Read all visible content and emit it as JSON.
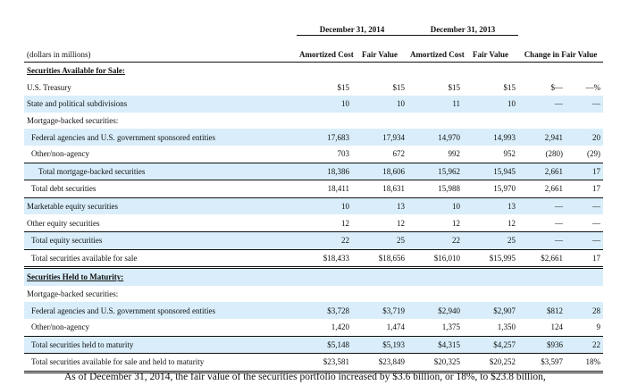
{
  "table": {
    "group_headers": [
      "December 31, 2014",
      "December 31, 2013"
    ],
    "units_label": "(dollars in millions)",
    "col_headers": [
      "Amortized Cost",
      "Fair Value",
      "Amortized Cost",
      "Fair Value",
      "Change in Fair Value"
    ],
    "rows": [
      {
        "label": "Securities Available for Sale:",
        "kind": "section",
        "vals": [
          "",
          "",
          "",
          "",
          "",
          ""
        ]
      },
      {
        "label": "U.S. Treasury",
        "kind": "plain",
        "vals": [
          "$15",
          "$15",
          "$15",
          "$15",
          "$—",
          "—%"
        ]
      },
      {
        "label": "State and political subdivisions",
        "kind": "blue",
        "vals": [
          "10",
          "10",
          "11",
          "10",
          "—",
          "—"
        ]
      },
      {
        "label": "Mortgage-backed securities:",
        "kind": "plain",
        "vals": [
          "",
          "",
          "",
          "",
          "",
          ""
        ]
      },
      {
        "label": "Federal agencies and U.S. government sponsored entities",
        "kind": "blue ind1",
        "vals": [
          "17,683",
          "17,934",
          "14,970",
          "14,993",
          "2,941",
          "20"
        ]
      },
      {
        "label": "Other/non-agency",
        "kind": "plain ind1",
        "vals": [
          "703",
          "672",
          "992",
          "952",
          "(280)",
          "(29)"
        ]
      },
      {
        "label": "Total mortgage-backed securities",
        "kind": "blue ind2 rule",
        "vals": [
          "18,386",
          "18,606",
          "15,962",
          "15,945",
          "2,661",
          "17"
        ]
      },
      {
        "label": "Total debt securities",
        "kind": "plain ind1 rule",
        "vals": [
          "18,411",
          "18,631",
          "15,988",
          "15,970",
          "2,661",
          "17"
        ]
      },
      {
        "label": "Marketable equity securities",
        "kind": "blue rule",
        "vals": [
          "10",
          "13",
          "10",
          "13",
          "—",
          "—"
        ]
      },
      {
        "label": "Other equity securities",
        "kind": "plain",
        "vals": [
          "12",
          "12",
          "12",
          "12",
          "—",
          "—"
        ]
      },
      {
        "label": "Total equity securities",
        "kind": "blue ind1 rule",
        "vals": [
          "22",
          "25",
          "22",
          "25",
          "—",
          "—"
        ]
      },
      {
        "label": "Total securities available for sale",
        "kind": "plain ind1 rule dbl",
        "vals": [
          "$18,433",
          "$18,656",
          "$16,010",
          "$15,995",
          "$2,661",
          "17"
        ]
      },
      {
        "label": "Securities Held to Maturity:",
        "kind": "section blue",
        "vals": [
          "",
          "",
          "",
          "",
          "",
          ""
        ]
      },
      {
        "label": "Mortgage-backed securities:",
        "kind": "plain",
        "vals": [
          "",
          "",
          "",
          "",
          "",
          ""
        ]
      },
      {
        "label": "Federal agencies and U.S. government sponsored entities",
        "kind": "blue ind1",
        "vals": [
          "$3,728",
          "$3,719",
          "$2,940",
          "$2,907",
          "$812",
          "28"
        ]
      },
      {
        "label": "Other/non-agency",
        "kind": "plain ind1",
        "vals": [
          "1,420",
          "1,474",
          "1,375",
          "1,350",
          "124",
          "9"
        ]
      },
      {
        "label": "Total securities held to maturity",
        "kind": "blue ind1 rule",
        "vals": [
          "$5,148",
          "$5,193",
          "$4,315",
          "$4,257",
          "$936",
          "22"
        ]
      },
      {
        "label": "Total securities available for sale and held to maturity",
        "kind": "plain ind1 rule dbl",
        "vals": [
          "$23,581",
          "$23,849",
          "$20,325",
          "$20,252",
          "$3,597",
          "18%"
        ]
      }
    ]
  },
  "footnote": "As of December 31, 2014, the fair value of the securities portfolio increased by $3.6 billion, or 18%, to $23.8 billion,"
}
